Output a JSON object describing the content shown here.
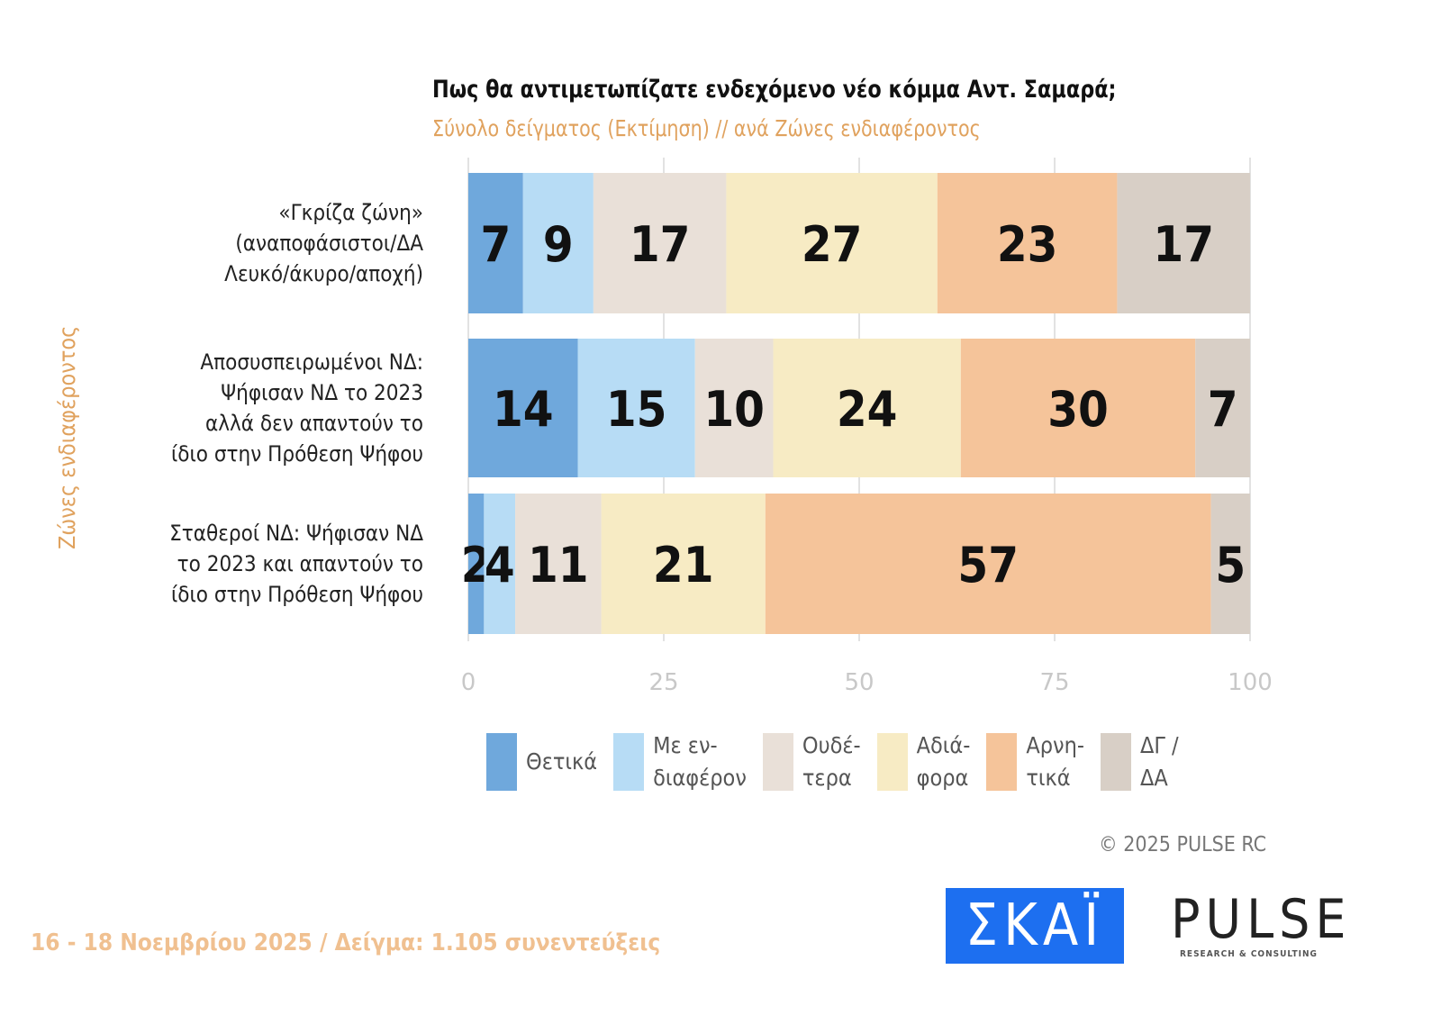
{
  "chart_data": {
    "type": "bar",
    "orientation": "horizontal",
    "stacked": true,
    "title": "Πως θα αντιμετωπίζατε ενδεχόμενο νέο κόμμα Αντ. Σαμαρά;",
    "subtitle": "Σύνολο δείγματος   (Εκτίμηση) // ανά Ζώνες ενδιαφέροντος",
    "ylabel": "Ζώνες ενδιαφέροντος",
    "xlabel": "",
    "xlim": [
      0,
      100
    ],
    "xticks": [
      "0",
      "25",
      "50",
      "75",
      "100"
    ],
    "grid": true,
    "legend_position": "bottom",
    "categories": [
      [
        "«Γκρίζα ζώνη»",
        "(αναποφάσιστοι/ΔΑ",
        "Λευκό/άκυρο/αποχή)"
      ],
      [
        "Αποσυσπειρωμένοι ΝΔ:",
        "Ψήφισαν ΝΔ το 2023",
        "αλλά δεν απαντούν το",
        "ίδιο στην Πρόθεση Ψήφου"
      ],
      [
        "Σταθεροί ΝΔ: Ψήφισαν ΝΔ",
        "το 2023 και απαντούν το",
        "ίδιο στην Πρόθεση Ψήφου"
      ]
    ],
    "series": [
      {
        "name": "Θετικά",
        "legend": "Θετικά",
        "color": "#6fa8dc",
        "values": [
          7,
          14,
          2
        ]
      },
      {
        "name": "Με ενδιαφέρον",
        "legend": "Με εν-\nδιαφέρον",
        "color": "#b7dcf5",
        "values": [
          9,
          15,
          4
        ]
      },
      {
        "name": "Ουδέτερα",
        "legend": "Ουδέ-\nτερα",
        "color": "#e9e0d8",
        "values": [
          17,
          10,
          11
        ]
      },
      {
        "name": "Αδιάφορα",
        "legend": "Αδιά-\nφορα",
        "color": "#f7ebc4",
        "values": [
          27,
          24,
          21
        ]
      },
      {
        "name": "Αρνητικά",
        "legend": "Αρνη-\nτικά",
        "color": "#f5c49a",
        "values": [
          23,
          30,
          57
        ]
      },
      {
        "name": "ΔΓ / ΔΑ",
        "legend": "ΔΓ /\nΔΑ",
        "color": "#d8cfc6",
        "values": [
          17,
          7,
          5
        ]
      }
    ]
  },
  "copyright": "©  2025  PULSE RC",
  "footer": "16 - 18 Νοεμβρίου 2025  /  Δείγμα:  1.105 συνεντεύξεις",
  "logos": {
    "skai": "ΣΚΑΪ",
    "pulse": "PULSE",
    "pulse_sub": "RESEARCH & CONSULTING"
  }
}
